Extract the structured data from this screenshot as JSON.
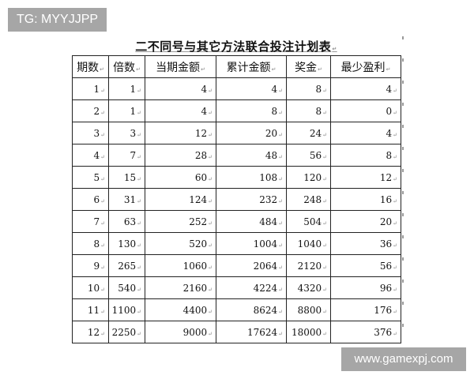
{
  "overlay": {
    "tag": "TG: MYYJJPP",
    "watermark": "www.gamexpj.com"
  },
  "document": {
    "title": "二不同号与其它方法联合投注计划表",
    "table": {
      "headers": [
        "期数",
        "倍数",
        "当期金额",
        "累计金额",
        "奖金",
        "最少盈利"
      ],
      "rows": [
        [
          "1",
          "1",
          "4",
          "4",
          "8",
          "4"
        ],
        [
          "2",
          "1",
          "4",
          "8",
          "8",
          "0"
        ],
        [
          "3",
          "3",
          "12",
          "20",
          "24",
          "4"
        ],
        [
          "4",
          "7",
          "28",
          "48",
          "56",
          "8"
        ],
        [
          "5",
          "15",
          "60",
          "108",
          "120",
          "12"
        ],
        [
          "6",
          "31",
          "124",
          "232",
          "248",
          "16"
        ],
        [
          "7",
          "63",
          "252",
          "484",
          "504",
          "20"
        ],
        [
          "8",
          "130",
          "520",
          "1004",
          "1040",
          "36"
        ],
        [
          "9",
          "265",
          "1060",
          "2064",
          "2120",
          "56"
        ],
        [
          "10",
          "540",
          "2160",
          "4224",
          "4320",
          "96"
        ],
        [
          "11",
          "1100",
          "4400",
          "8624",
          "8800",
          "176"
        ],
        [
          "12",
          "2250",
          "9000",
          "17624",
          "18000",
          "376"
        ]
      ]
    }
  }
}
